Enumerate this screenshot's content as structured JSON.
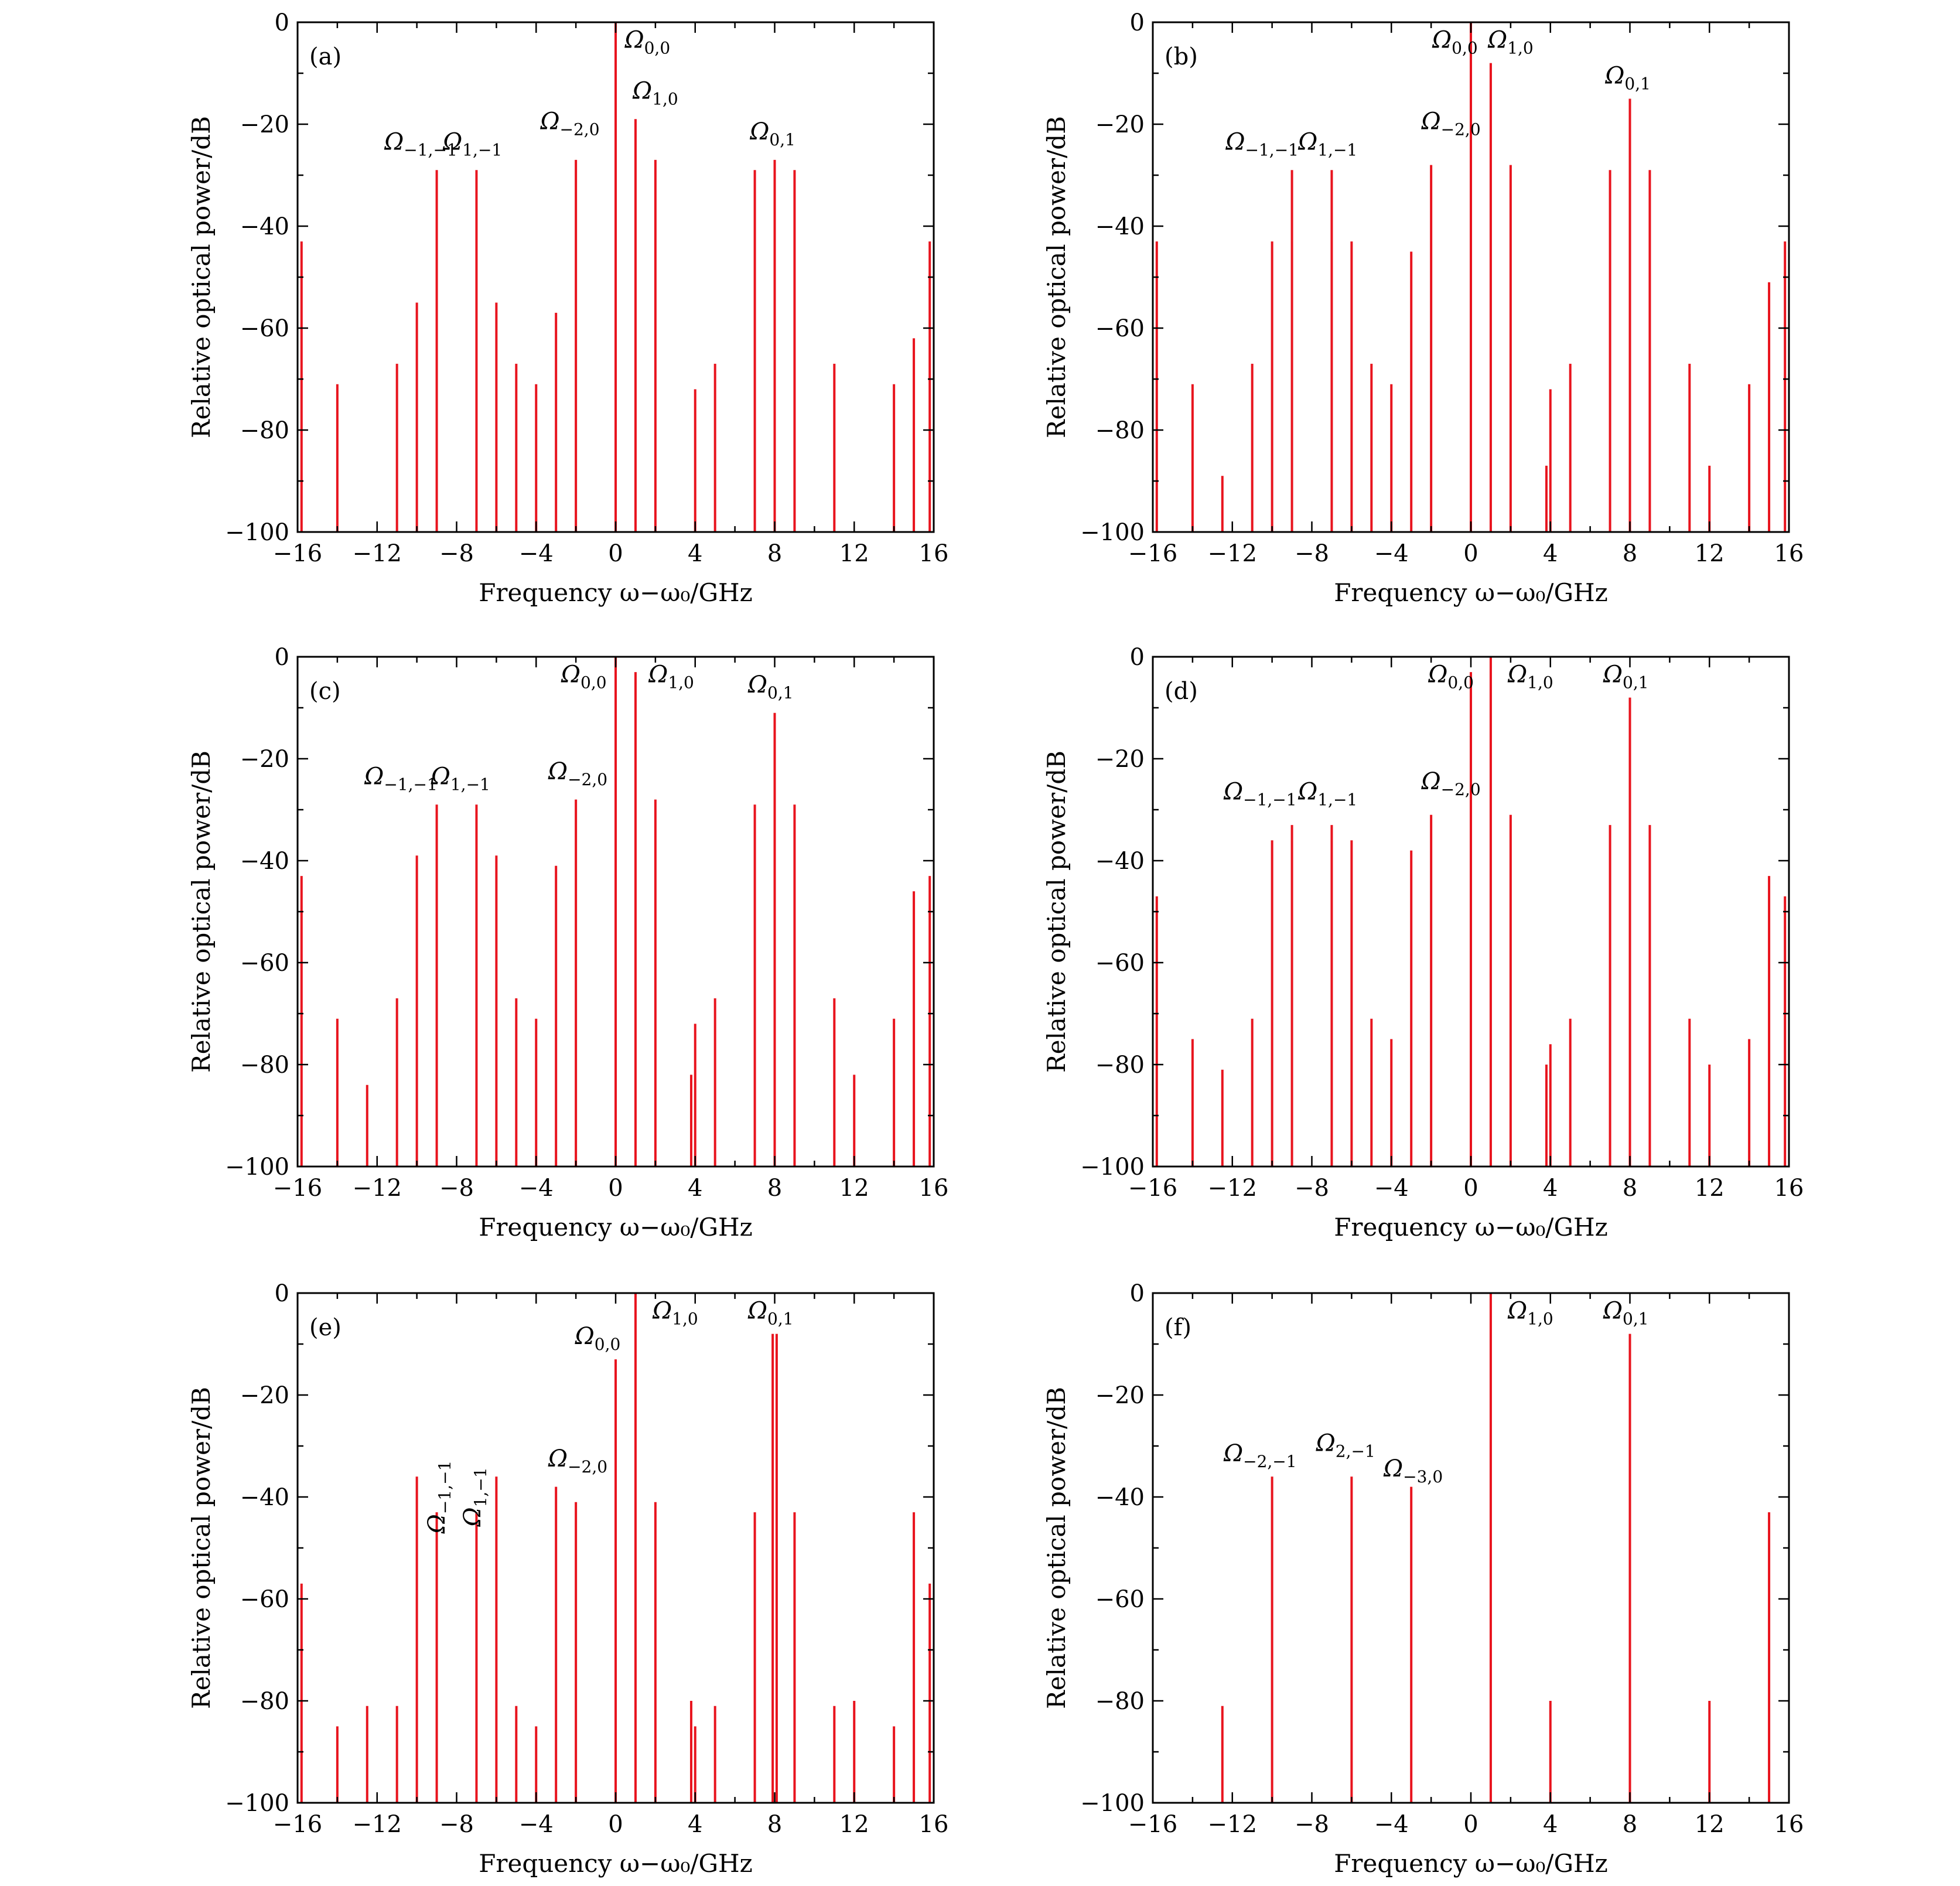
{
  "colors": {
    "peaks": "#e8141e",
    "axes": "#000000",
    "background": "#ffffff"
  },
  "chart_data": [
    {
      "panel": "(a)",
      "type": "bar",
      "xlabel": "Frequency ω−ω₀/GHz",
      "ylabel": "Relative optical power/dB",
      "xlim": [
        -16,
        16
      ],
      "ylim": [
        -100,
        0
      ],
      "xticks": [
        -16,
        -12,
        -8,
        -4,
        0,
        4,
        8,
        12,
        16
      ],
      "yticks": [
        0,
        -20,
        -40,
        -60,
        -80,
        -100
      ],
      "peaks": [
        {
          "x": -15.8,
          "y": -43
        },
        {
          "x": -14,
          "y": -71
        },
        {
          "x": -11,
          "y": -67
        },
        {
          "x": -10,
          "y": -55
        },
        {
          "x": -9,
          "y": -29
        },
        {
          "x": -7,
          "y": -29
        },
        {
          "x": -6,
          "y": -55
        },
        {
          "x": -5,
          "y": -67
        },
        {
          "x": -4,
          "y": -71
        },
        {
          "x": -3,
          "y": -57
        },
        {
          "x": -2,
          "y": -27
        },
        {
          "x": 0,
          "y": 0
        },
        {
          "x": 1,
          "y": -19
        },
        {
          "x": 2,
          "y": -27
        },
        {
          "x": 4,
          "y": -72
        },
        {
          "x": 5,
          "y": -67
        },
        {
          "x": 7,
          "y": -29
        },
        {
          "x": 8,
          "y": -27
        },
        {
          "x": 9,
          "y": -29
        },
        {
          "x": 11,
          "y": -67
        },
        {
          "x": 14,
          "y": -71
        },
        {
          "x": 15,
          "y": -62
        },
        {
          "x": 15.8,
          "y": -43
        }
      ],
      "annotations": [
        {
          "base": "Ω",
          "sub": "−1,−1",
          "x": -9.8,
          "y": -25
        },
        {
          "base": "Ω",
          "sub": "1,−1",
          "x": -7.2,
          "y": -25
        },
        {
          "base": "Ω",
          "sub": "−2,0",
          "x": -2.3,
          "y": -21
        },
        {
          "base": "Ω",
          "sub": "0,0",
          "x": 1.6,
          "y": -5
        },
        {
          "base": "Ω",
          "sub": "1,0",
          "x": 2.0,
          "y": -15
        },
        {
          "base": "Ω",
          "sub": "0,1",
          "x": 7.9,
          "y": -23
        }
      ]
    },
    {
      "panel": "(b)",
      "type": "bar",
      "xlabel": "Frequency ω−ω₀/GHz",
      "ylabel": "Relative optical power/dB",
      "xlim": [
        -16,
        16
      ],
      "ylim": [
        -100,
        0
      ],
      "xticks": [
        -16,
        -12,
        -8,
        -4,
        0,
        4,
        8,
        12,
        16
      ],
      "yticks": [
        0,
        -20,
        -40,
        -60,
        -80,
        -100
      ],
      "peaks": [
        {
          "x": -15.8,
          "y": -43
        },
        {
          "x": -14,
          "y": -71
        },
        {
          "x": -12.5,
          "y": -89
        },
        {
          "x": -11,
          "y": -67
        },
        {
          "x": -10,
          "y": -43
        },
        {
          "x": -9,
          "y": -29
        },
        {
          "x": -7,
          "y": -29
        },
        {
          "x": -6,
          "y": -43
        },
        {
          "x": -5,
          "y": -67
        },
        {
          "x": -4,
          "y": -71
        },
        {
          "x": -3,
          "y": -45
        },
        {
          "x": -2,
          "y": -28
        },
        {
          "x": 0,
          "y": 0
        },
        {
          "x": 1,
          "y": -8
        },
        {
          "x": 2,
          "y": -28
        },
        {
          "x": 3.8,
          "y": -87
        },
        {
          "x": 4,
          "y": -72
        },
        {
          "x": 5,
          "y": -67
        },
        {
          "x": 7,
          "y": -29
        },
        {
          "x": 8,
          "y": -15
        },
        {
          "x": 9,
          "y": -29
        },
        {
          "x": 11,
          "y": -67
        },
        {
          "x": 12,
          "y": -87
        },
        {
          "x": 14,
          "y": -71
        },
        {
          "x": 15,
          "y": -51
        },
        {
          "x": 15.8,
          "y": -43
        }
      ],
      "annotations": [
        {
          "base": "Ω",
          "sub": "−1,−1",
          "x": -10.5,
          "y": -25
        },
        {
          "base": "Ω",
          "sub": "1,−1",
          "x": -7.2,
          "y": -25
        },
        {
          "base": "Ω",
          "sub": "−2,0",
          "x": -1.0,
          "y": -21
        },
        {
          "base": "Ω",
          "sub": "0,0",
          "x": -0.8,
          "y": -5
        },
        {
          "base": "Ω",
          "sub": "1,0",
          "x": 2.0,
          "y": -5
        },
        {
          "base": "Ω",
          "sub": "0,1",
          "x": 7.9,
          "y": -12
        }
      ]
    },
    {
      "panel": "(c)",
      "type": "bar",
      "xlabel": "Frequency ω−ω₀/GHz",
      "ylabel": "Relative optical power/dB",
      "xlim": [
        -16,
        16
      ],
      "ylim": [
        -100,
        0
      ],
      "xticks": [
        -16,
        -12,
        -8,
        -4,
        0,
        4,
        8,
        12,
        16
      ],
      "yticks": [
        0,
        -20,
        -40,
        -60,
        -80,
        -100
      ],
      "peaks": [
        {
          "x": -15.8,
          "y": -43
        },
        {
          "x": -14,
          "y": -71
        },
        {
          "x": -12.5,
          "y": -84
        },
        {
          "x": -11,
          "y": -67
        },
        {
          "x": -10,
          "y": -39
        },
        {
          "x": -9,
          "y": -29
        },
        {
          "x": -7,
          "y": -29
        },
        {
          "x": -6,
          "y": -39
        },
        {
          "x": -5,
          "y": -67
        },
        {
          "x": -4,
          "y": -71
        },
        {
          "x": -3,
          "y": -41
        },
        {
          "x": -2,
          "y": -28
        },
        {
          "x": 0,
          "y": 0
        },
        {
          "x": 1,
          "y": -3
        },
        {
          "x": 2,
          "y": -28
        },
        {
          "x": 3.8,
          "y": -82
        },
        {
          "x": 4,
          "y": -72
        },
        {
          "x": 5,
          "y": -67
        },
        {
          "x": 7,
          "y": -29
        },
        {
          "x": 8,
          "y": -11
        },
        {
          "x": 9,
          "y": -29
        },
        {
          "x": 11,
          "y": -67
        },
        {
          "x": 12,
          "y": -82
        },
        {
          "x": 14,
          "y": -71
        },
        {
          "x": 15,
          "y": -46
        },
        {
          "x": 15.8,
          "y": -43
        }
      ],
      "annotations": [
        {
          "base": "Ω",
          "sub": "−1,−1",
          "x": -10.8,
          "y": -25
        },
        {
          "base": "Ω",
          "sub": "1,−1",
          "x": -7.8,
          "y": -25
        },
        {
          "base": "Ω",
          "sub": "−2,0",
          "x": -1.9,
          "y": -24
        },
        {
          "base": "Ω",
          "sub": "0,0",
          "x": -1.6,
          "y": -5
        },
        {
          "base": "Ω",
          "sub": "1,0",
          "x": 2.8,
          "y": -5
        },
        {
          "base": "Ω",
          "sub": "0,1",
          "x": 7.8,
          "y": -7
        }
      ]
    },
    {
      "panel": "(d)",
      "type": "bar",
      "xlabel": "Frequency ω−ω₀/GHz",
      "ylabel": "Relative optical power/dB",
      "xlim": [
        -16,
        16
      ],
      "ylim": [
        -100,
        0
      ],
      "xticks": [
        -16,
        -12,
        -8,
        -4,
        0,
        4,
        8,
        12,
        16
      ],
      "yticks": [
        0,
        -20,
        -40,
        -60,
        -80,
        -100
      ],
      "peaks": [
        {
          "x": -15.8,
          "y": -47
        },
        {
          "x": -14,
          "y": -75
        },
        {
          "x": -12.5,
          "y": -81
        },
        {
          "x": -11,
          "y": -71
        },
        {
          "x": -10,
          "y": -36
        },
        {
          "x": -9,
          "y": -33
        },
        {
          "x": -7,
          "y": -33
        },
        {
          "x": -6,
          "y": -36
        },
        {
          "x": -5,
          "y": -71
        },
        {
          "x": -4,
          "y": -75
        },
        {
          "x": -3,
          "y": -38
        },
        {
          "x": -2,
          "y": -31
        },
        {
          "x": 0,
          "y": -3
        },
        {
          "x": 1,
          "y": 0
        },
        {
          "x": 2,
          "y": -31
        },
        {
          "x": 3.8,
          "y": -80
        },
        {
          "x": 4,
          "y": -76
        },
        {
          "x": 5,
          "y": -71
        },
        {
          "x": 7,
          "y": -33
        },
        {
          "x": 8,
          "y": -8
        },
        {
          "x": 9,
          "y": -33
        },
        {
          "x": 11,
          "y": -71
        },
        {
          "x": 12,
          "y": -80
        },
        {
          "x": 14,
          "y": -75
        },
        {
          "x": 15,
          "y": -43
        },
        {
          "x": 15.8,
          "y": -47
        }
      ],
      "annotations": [
        {
          "base": "Ω",
          "sub": "−1,−1",
          "x": -10.6,
          "y": -28
        },
        {
          "base": "Ω",
          "sub": "1,−1",
          "x": -7.2,
          "y": -28
        },
        {
          "base": "Ω",
          "sub": "−2,0",
          "x": -1.0,
          "y": -26
        },
        {
          "base": "Ω",
          "sub": "0,0",
          "x": -1.0,
          "y": -5
        },
        {
          "base": "Ω",
          "sub": "1,0",
          "x": 3.0,
          "y": -5
        },
        {
          "base": "Ω",
          "sub": "0,1",
          "x": 7.8,
          "y": -5
        }
      ]
    },
    {
      "panel": "(e)",
      "type": "bar",
      "xlabel": "Frequency ω−ω₀/GHz",
      "ylabel": "Relative optical power/dB",
      "xlim": [
        -16,
        16
      ],
      "ylim": [
        -100,
        0
      ],
      "xticks": [
        -16,
        -12,
        -8,
        -4,
        0,
        4,
        8,
        12,
        16
      ],
      "yticks": [
        0,
        -20,
        -40,
        -60,
        -80,
        -100
      ],
      "peaks": [
        {
          "x": -15.8,
          "y": -57
        },
        {
          "x": -14,
          "y": -85
        },
        {
          "x": -12.5,
          "y": -81
        },
        {
          "x": -11,
          "y": -81
        },
        {
          "x": -10,
          "y": -36
        },
        {
          "x": -9,
          "y": -43
        },
        {
          "x": -7,
          "y": -43
        },
        {
          "x": -6,
          "y": -36
        },
        {
          "x": -5,
          "y": -81
        },
        {
          "x": -4,
          "y": -85
        },
        {
          "x": -3,
          "y": -38
        },
        {
          "x": -2,
          "y": -41
        },
        {
          "x": 0,
          "y": -13
        },
        {
          "x": 1,
          "y": 0
        },
        {
          "x": 2,
          "y": -41
        },
        {
          "x": 3.8,
          "y": -80
        },
        {
          "x": 4,
          "y": -85
        },
        {
          "x": 5,
          "y": -81
        },
        {
          "x": 7,
          "y": -43
        },
        {
          "x": 7.9,
          "y": -8
        },
        {
          "x": 8.1,
          "y": -8
        },
        {
          "x": 9,
          "y": -43
        },
        {
          "x": 11,
          "y": -81
        },
        {
          "x": 12,
          "y": -80
        },
        {
          "x": 14,
          "y": -85
        },
        {
          "x": 15,
          "y": -43
        },
        {
          "x": 15.8,
          "y": -57
        }
      ],
      "annotations": [
        {
          "base": "Ω",
          "sub": "−1,−1",
          "x": -8.6,
          "y": -40,
          "rotate": true
        },
        {
          "base": "Ω",
          "sub": "1,−1",
          "x": -6.8,
          "y": -40,
          "rotate": true
        },
        {
          "base": "Ω",
          "sub": "−2,0",
          "x": -1.9,
          "y": -34
        },
        {
          "base": "Ω",
          "sub": "0,0",
          "x": -0.9,
          "y": -10
        },
        {
          "base": "Ω",
          "sub": "1,0",
          "x": 3.0,
          "y": -5
        },
        {
          "base": "Ω",
          "sub": "0,1",
          "x": 7.8,
          "y": -5
        }
      ]
    },
    {
      "panel": "(f)",
      "type": "bar",
      "xlabel": "Frequency ω−ω₀/GHz",
      "ylabel": "Relative optical power/dB",
      "xlim": [
        -16,
        16
      ],
      "ylim": [
        -100,
        0
      ],
      "xticks": [
        -16,
        -12,
        -8,
        -4,
        0,
        4,
        8,
        12,
        16
      ],
      "yticks": [
        0,
        -20,
        -40,
        -60,
        -80,
        -100
      ],
      "peaks": [
        {
          "x": -12.5,
          "y": -81
        },
        {
          "x": -10,
          "y": -36
        },
        {
          "x": -6,
          "y": -36
        },
        {
          "x": -3,
          "y": -38
        },
        {
          "x": 1,
          "y": 0
        },
        {
          "x": 4,
          "y": -80
        },
        {
          "x": 8,
          "y": -8
        },
        {
          "x": 12,
          "y": -80
        },
        {
          "x": 15,
          "y": -43
        }
      ],
      "annotations": [
        {
          "base": "Ω",
          "sub": "−2,−1",
          "x": -10.6,
          "y": -33
        },
        {
          "base": "Ω",
          "sub": "2,−1",
          "x": -6.3,
          "y": -31
        },
        {
          "base": "Ω",
          "sub": "−3,0",
          "x": -2.9,
          "y": -36
        },
        {
          "base": "Ω",
          "sub": "1,0",
          "x": 3.0,
          "y": -5
        },
        {
          "base": "Ω",
          "sub": "0,1",
          "x": 7.8,
          "y": -5
        }
      ]
    }
  ]
}
